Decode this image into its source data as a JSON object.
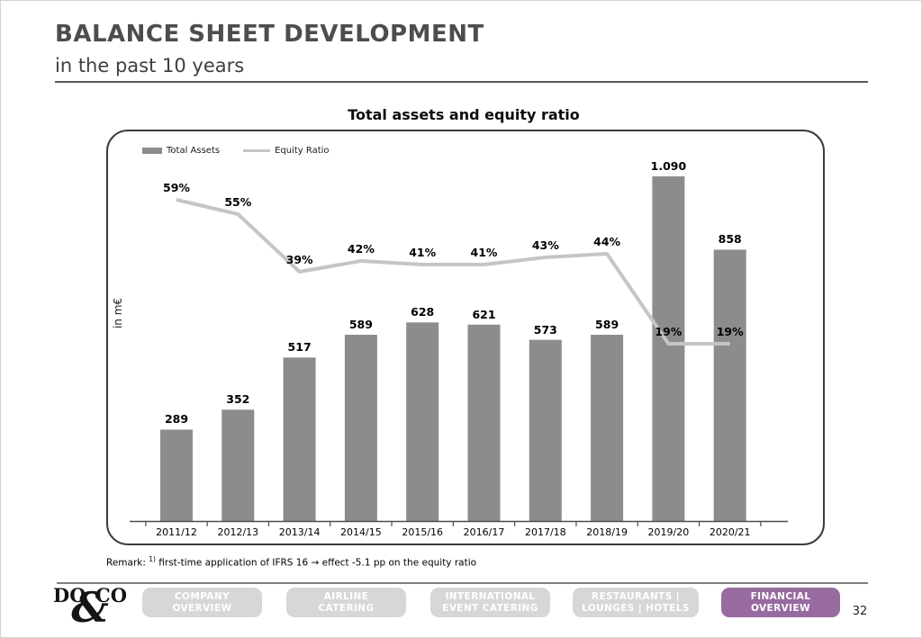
{
  "header": {
    "title": "BALANCE SHEET DEVELOPMENT",
    "subtitle": "in the past 10 years"
  },
  "chart": {
    "title": "Total assets and equity ratio",
    "y_axis_label": "in m€",
    "legend": [
      {
        "label": "Total Assets"
      },
      {
        "label": "Equity Ratio"
      }
    ],
    "remark": {
      "prefix": "Remark:",
      "superscript": "1)",
      "text": "first-time application of IFRS 16 → effect -5.1 pp on the equity ratio"
    }
  },
  "chart_data": {
    "type": "bar+line",
    "title": "Total assets and equity ratio",
    "ylabel": "in m€",
    "categories": [
      "2011/12",
      "2012/13",
      "2013/14",
      "2014/15",
      "2015/16",
      "2016/17",
      "2017/18",
      "2018/19",
      "2019/20",
      "2020/21"
    ],
    "series": [
      {
        "name": "Total Assets",
        "type": "bar",
        "unit": "m€",
        "values": [
          289,
          352,
          517,
          589,
          628,
          621,
          573,
          589,
          1090,
          858
        ],
        "labels": [
          "289",
          "352",
          "517",
          "589",
          "628",
          "621",
          "573",
          "589",
          "1.090",
          "858"
        ]
      },
      {
        "name": "Equity Ratio",
        "type": "line",
        "unit": "%",
        "values": [
          59,
          55,
          39,
          42,
          41,
          41,
          43,
          44,
          19,
          19
        ],
        "labels": [
          "59%",
          "55%",
          "39%",
          "42%",
          "41%",
          "41%",
          "43%",
          "44%",
          "19%",
          "19%"
        ]
      }
    ],
    "colors": {
      "bar": "#8c8c8c",
      "line": "#c5c5c5",
      "axis": "#4d4d4d"
    },
    "legend_position": "top-left",
    "grid": false,
    "bar_ylim": [
      0,
      1237
    ]
  },
  "footer": {
    "logo": {
      "left": "DO",
      "amp": "&",
      "right": "CO"
    },
    "nav": [
      {
        "line1": "COMPANY",
        "line2": "OVERVIEW",
        "active": false
      },
      {
        "line1": "AIRLINE",
        "line2": "CATERING",
        "active": false
      },
      {
        "line1": "INTERNATIONAL",
        "line2": "EVENT CATERING",
        "active": false
      },
      {
        "line1": "RESTAURANTS |",
        "line2": "LOUNGES | HOTELS",
        "active": false
      },
      {
        "line1": "FINANCIAL",
        "line2": "OVERVIEW",
        "active": true
      }
    ],
    "colors": {
      "active": "#976ba0",
      "inactive": "#d7d7d7"
    },
    "page_number": "32"
  }
}
